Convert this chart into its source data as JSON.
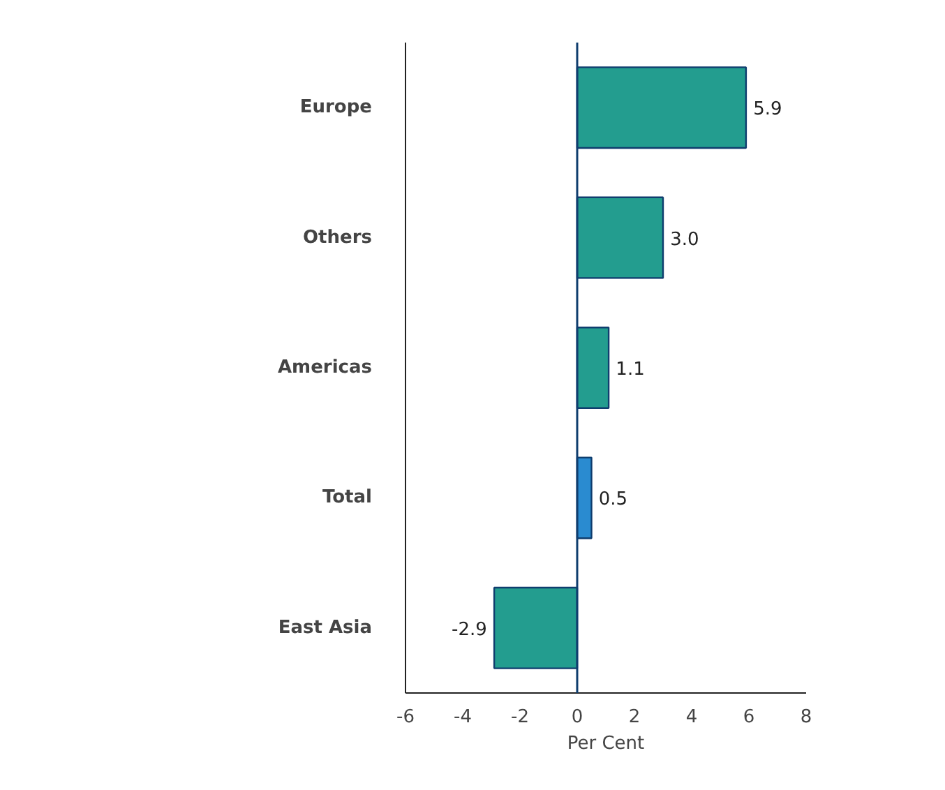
{
  "chart_data": {
    "type": "bar",
    "orientation": "horizontal",
    "xlabel": "Per Cent",
    "categories": [
      "Europe",
      "Others",
      "Americas",
      "Total",
      "East Asia"
    ],
    "values": [
      5.9,
      3.0,
      1.1,
      0.5,
      -2.9
    ],
    "colors": [
      "#239d8f",
      "#239d8f",
      "#239d8f",
      "#2a8bd0",
      "#239d8f"
    ],
    "value_labels": [
      "5.9",
      "3.0",
      "1.1",
      "0.5",
      "-2.9"
    ],
    "xlim": [
      -6,
      8
    ],
    "xticks": [
      -6,
      -4,
      -2,
      0,
      2,
      4,
      6,
      8
    ],
    "ref_lines": [
      {
        "axis": "x",
        "value": 0,
        "color": "#0f3d6e"
      }
    ],
    "grid": false
  }
}
